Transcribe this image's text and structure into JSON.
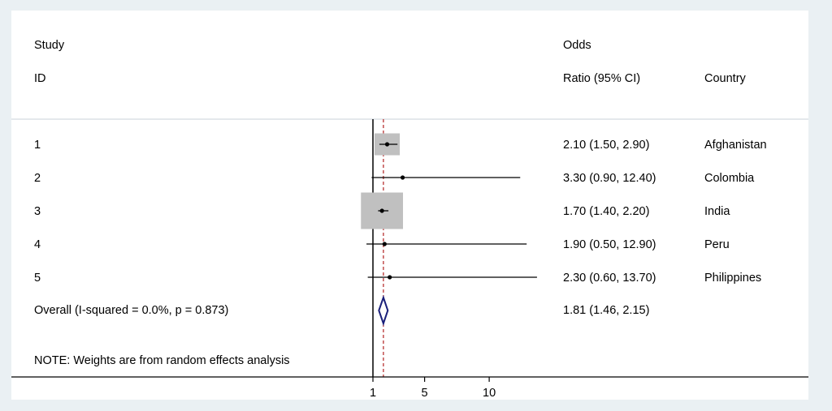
{
  "chart_data": {
    "type": "forest",
    "headers": {
      "study_line1": "Study",
      "study_line2": "ID",
      "or_line1": "Odds",
      "or_line2": "Ratio (95% CI)",
      "country": "Country"
    },
    "studies": [
      {
        "id": "1",
        "or": 2.1,
        "lo": 1.5,
        "hi": 2.9,
        "label": "2.10 (1.50, 2.90)",
        "country": "Afghanistan",
        "weight": 3
      },
      {
        "id": "2",
        "or": 3.3,
        "lo": 0.9,
        "hi": 12.4,
        "label": "3.30 (0.90, 12.40)",
        "country": "Colombia",
        "weight": 0
      },
      {
        "id": "3",
        "or": 1.7,
        "lo": 1.4,
        "hi": 2.2,
        "label": "1.70 (1.40, 2.20)",
        "country": "India",
        "weight": 5
      },
      {
        "id": "4",
        "or": 1.9,
        "lo": 0.5,
        "hi": 12.9,
        "label": "1.90 (0.50, 12.90)",
        "country": "Peru",
        "weight": 0
      },
      {
        "id": "5",
        "or": 2.3,
        "lo": 0.6,
        "hi": 13.7,
        "label": "2.30 (0.60, 13.70)",
        "country": "Philippines",
        "weight": 0
      }
    ],
    "overall": {
      "label_text": "Overall  (I-squared = 0.0%, p = 0.873)",
      "or": 1.81,
      "lo": 1.46,
      "hi": 2.15,
      "label": "1.81 (1.46, 2.15)"
    },
    "note": "NOTE: Weights are from random effects analysis",
    "xaxis": {
      "ticks": [
        1,
        5,
        10
      ],
      "tick_labels": [
        "1",
        "5",
        "10"
      ]
    },
    "colors": {
      "box": "#c0c0c0",
      "diamond": "#1a1f7a",
      "reference": "#b22222",
      "line": "#000000"
    }
  }
}
